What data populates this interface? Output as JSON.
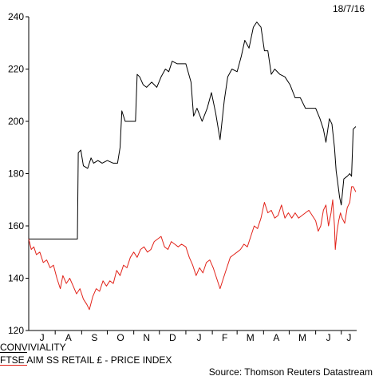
{
  "date_stamp": "18/7/16",
  "source": "Source: Thomson Reuters Datastream",
  "chart_data": {
    "type": "line",
    "title": "",
    "xlabel": "",
    "ylabel": "",
    "ylim": [
      120,
      240
    ],
    "yticks": [
      120,
      140,
      160,
      180,
      200,
      220,
      240
    ],
    "x_tick_labels": [
      "J",
      "A",
      "S",
      "O",
      "N",
      "D",
      "J",
      "F",
      "M",
      "A",
      "M",
      "J",
      "J"
    ],
    "x_domain": [
      "2015-07-01",
      "2016-07-19"
    ],
    "grid": false,
    "legend_position": "bottom-left",
    "series": [
      {
        "name": "CONVIVIALITY",
        "color": "#000000",
        "points": [
          [
            "2015-07-01",
            155
          ],
          [
            "2015-07-10",
            155
          ],
          [
            "2015-07-20",
            155
          ],
          [
            "2015-07-31",
            155
          ],
          [
            "2015-08-10",
            155
          ],
          [
            "2015-08-20",
            155
          ],
          [
            "2015-08-27",
            155
          ],
          [
            "2015-08-28",
            188
          ],
          [
            "2015-08-31",
            189
          ],
          [
            "2015-09-03",
            183
          ],
          [
            "2015-09-08",
            182
          ],
          [
            "2015-09-12",
            186
          ],
          [
            "2015-09-15",
            184
          ],
          [
            "2015-09-20",
            185
          ],
          [
            "2015-09-25",
            184
          ],
          [
            "2015-10-01",
            185
          ],
          [
            "2015-10-08",
            184
          ],
          [
            "2015-10-13",
            184
          ],
          [
            "2015-10-16",
            190
          ],
          [
            "2015-10-18",
            204
          ],
          [
            "2015-10-22",
            200
          ],
          [
            "2015-10-28",
            200
          ],
          [
            "2015-11-03",
            200
          ],
          [
            "2015-11-05",
            218
          ],
          [
            "2015-11-08",
            217
          ],
          [
            "2015-11-12",
            214
          ],
          [
            "2015-11-16",
            213
          ],
          [
            "2015-11-22",
            215
          ],
          [
            "2015-11-28",
            213
          ],
          [
            "2015-12-03",
            217
          ],
          [
            "2015-12-08",
            220
          ],
          [
            "2015-12-12",
            219
          ],
          [
            "2015-12-16",
            223
          ],
          [
            "2015-12-22",
            222
          ],
          [
            "2016-01-01",
            222
          ],
          [
            "2016-01-07",
            215
          ],
          [
            "2016-01-10",
            202
          ],
          [
            "2016-01-14",
            205
          ],
          [
            "2016-01-20",
            200
          ],
          [
            "2016-01-26",
            205
          ],
          [
            "2016-01-31",
            211
          ],
          [
            "2016-02-05",
            203
          ],
          [
            "2016-02-10",
            193
          ],
          [
            "2016-02-15",
            208
          ],
          [
            "2016-02-19",
            217
          ],
          [
            "2016-02-24",
            220
          ],
          [
            "2016-03-01",
            219
          ],
          [
            "2016-03-06",
            225
          ],
          [
            "2016-03-10",
            231
          ],
          [
            "2016-03-15",
            228
          ],
          [
            "2016-03-20",
            236
          ],
          [
            "2016-03-24",
            238
          ],
          [
            "2016-03-29",
            236
          ],
          [
            "2016-04-02",
            227
          ],
          [
            "2016-04-06",
            227
          ],
          [
            "2016-04-10",
            218
          ],
          [
            "2016-04-14",
            220
          ],
          [
            "2016-04-20",
            218
          ],
          [
            "2016-04-26",
            217
          ],
          [
            "2016-05-02",
            214
          ],
          [
            "2016-05-08",
            209
          ],
          [
            "2016-05-14",
            209
          ],
          [
            "2016-05-20",
            205
          ],
          [
            "2016-05-26",
            205
          ],
          [
            "2016-06-01",
            205
          ],
          [
            "2016-06-06",
            201
          ],
          [
            "2016-06-10",
            197
          ],
          [
            "2016-06-13",
            192
          ],
          [
            "2016-06-17",
            201
          ],
          [
            "2016-06-20",
            199
          ],
          [
            "2016-06-23",
            190
          ],
          [
            "2016-06-25",
            181
          ],
          [
            "2016-06-27",
            176
          ],
          [
            "2016-06-29",
            171
          ],
          [
            "2016-07-01",
            168
          ],
          [
            "2016-07-04",
            178
          ],
          [
            "2016-07-08",
            179
          ],
          [
            "2016-07-11",
            180
          ],
          [
            "2016-07-13",
            179
          ],
          [
            "2016-07-15",
            197
          ],
          [
            "2016-07-18",
            198
          ]
        ]
      },
      {
        "name": "FTSE AIM SS RETAIL £ - PRICE INDEX",
        "color": "#e2231a",
        "points": [
          [
            "2015-07-01",
            155
          ],
          [
            "2015-07-04",
            151
          ],
          [
            "2015-07-07",
            152
          ],
          [
            "2015-07-10",
            149
          ],
          [
            "2015-07-14",
            150
          ],
          [
            "2015-07-18",
            146
          ],
          [
            "2015-07-22",
            147
          ],
          [
            "2015-07-26",
            144
          ],
          [
            "2015-07-30",
            145
          ],
          [
            "2015-08-03",
            140
          ],
          [
            "2015-08-07",
            136
          ],
          [
            "2015-08-10",
            141
          ],
          [
            "2015-08-14",
            138
          ],
          [
            "2015-08-18",
            140
          ],
          [
            "2015-08-22",
            137
          ],
          [
            "2015-08-26",
            134
          ],
          [
            "2015-08-30",
            136
          ],
          [
            "2015-09-03",
            132
          ],
          [
            "2015-09-07",
            130
          ],
          [
            "2015-09-10",
            128
          ],
          [
            "2015-09-14",
            133
          ],
          [
            "2015-09-18",
            136
          ],
          [
            "2015-09-22",
            135
          ],
          [
            "2015-09-26",
            139
          ],
          [
            "2015-09-30",
            137
          ],
          [
            "2015-10-04",
            139
          ],
          [
            "2015-10-08",
            138
          ],
          [
            "2015-10-12",
            143
          ],
          [
            "2015-10-16",
            141
          ],
          [
            "2015-10-20",
            145
          ],
          [
            "2015-10-24",
            144
          ],
          [
            "2015-10-28",
            148
          ],
          [
            "2015-11-01",
            150
          ],
          [
            "2015-11-05",
            148
          ],
          [
            "2015-11-09",
            151
          ],
          [
            "2015-11-13",
            152
          ],
          [
            "2015-11-17",
            150
          ],
          [
            "2015-11-21",
            151
          ],
          [
            "2015-11-25",
            154
          ],
          [
            "2015-11-29",
            155
          ],
          [
            "2015-12-03",
            156
          ],
          [
            "2015-12-07",
            152
          ],
          [
            "2015-12-11",
            151
          ],
          [
            "2015-12-15",
            154
          ],
          [
            "2015-12-19",
            153
          ],
          [
            "2015-12-23",
            152
          ],
          [
            "2015-12-27",
            153
          ],
          [
            "2016-01-01",
            152
          ],
          [
            "2016-01-05",
            148
          ],
          [
            "2016-01-09",
            145
          ],
          [
            "2016-01-13",
            141
          ],
          [
            "2016-01-17",
            144
          ],
          [
            "2016-01-21",
            142
          ],
          [
            "2016-01-25",
            146
          ],
          [
            "2016-01-29",
            147
          ],
          [
            "2016-02-02",
            144
          ],
          [
            "2016-02-06",
            140
          ],
          [
            "2016-02-10",
            136
          ],
          [
            "2016-02-14",
            140
          ],
          [
            "2016-02-18",
            144
          ],
          [
            "2016-02-22",
            148
          ],
          [
            "2016-02-26",
            149
          ],
          [
            "2016-03-01",
            150
          ],
          [
            "2016-03-05",
            151
          ],
          [
            "2016-03-09",
            153
          ],
          [
            "2016-03-13",
            152
          ],
          [
            "2016-03-17",
            156
          ],
          [
            "2016-03-21",
            160
          ],
          [
            "2016-03-25",
            159
          ],
          [
            "2016-03-29",
            163
          ],
          [
            "2016-04-02",
            169
          ],
          [
            "2016-04-06",
            165
          ],
          [
            "2016-04-10",
            166
          ],
          [
            "2016-04-14",
            163
          ],
          [
            "2016-04-18",
            164
          ],
          [
            "2016-04-22",
            168
          ],
          [
            "2016-04-26",
            163
          ],
          [
            "2016-04-30",
            165
          ],
          [
            "2016-05-04",
            163
          ],
          [
            "2016-05-08",
            165
          ],
          [
            "2016-05-12",
            163
          ],
          [
            "2016-05-16",
            164
          ],
          [
            "2016-05-20",
            165
          ],
          [
            "2016-05-24",
            166
          ],
          [
            "2016-05-28",
            164
          ],
          [
            "2016-06-01",
            162
          ],
          [
            "2016-06-04",
            158
          ],
          [
            "2016-06-07",
            160
          ],
          [
            "2016-06-10",
            166
          ],
          [
            "2016-06-13",
            168
          ],
          [
            "2016-06-16",
            160
          ],
          [
            "2016-06-19",
            165
          ],
          [
            "2016-06-21",
            170
          ],
          [
            "2016-06-23",
            160
          ],
          [
            "2016-06-24",
            151
          ],
          [
            "2016-06-26",
            158
          ],
          [
            "2016-06-28",
            162
          ],
          [
            "2016-06-30",
            165
          ],
          [
            "2016-07-02",
            163
          ],
          [
            "2016-07-05",
            161
          ],
          [
            "2016-07-08",
            167
          ],
          [
            "2016-07-11",
            169
          ],
          [
            "2016-07-13",
            175
          ],
          [
            "2016-07-15",
            175
          ],
          [
            "2016-07-18",
            173
          ]
        ]
      }
    ]
  }
}
